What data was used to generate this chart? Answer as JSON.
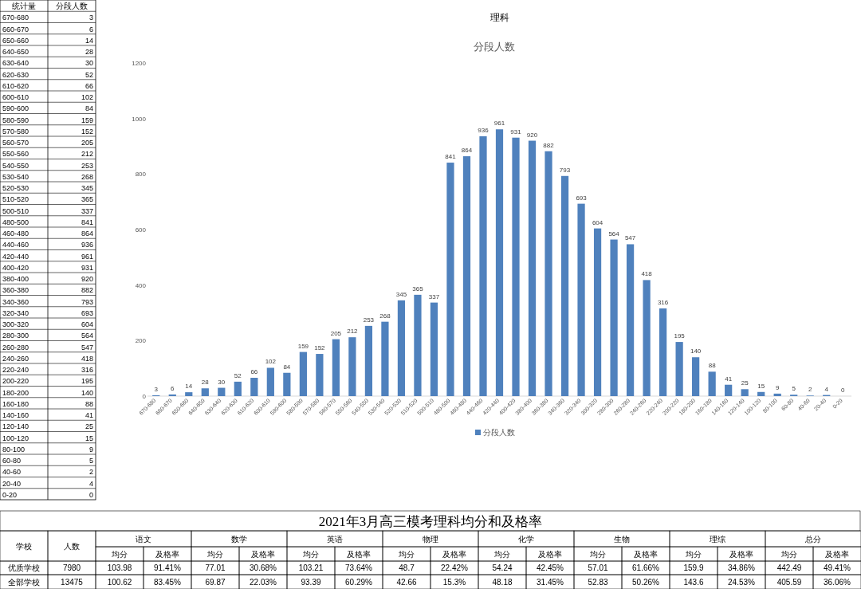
{
  "chart_data": [
    {
      "type": "other",
      "annotations": [
        "统计量",
        "分段人数",
        "670-680",
        "3",
        "660-670",
        "6",
        "650-660",
        "14",
        "640-650",
        "28",
        "630-640",
        "30",
        "620-630",
        "52",
        "610-620",
        "66",
        "600-610",
        "102",
        "590-600",
        "84",
        "580-590",
        "159",
        "570-580",
        "152",
        "560-570",
        "205",
        "550-560",
        "212",
        "540-550",
        "253",
        "530-540",
        "268",
        "520-530",
        "345",
        "510-520",
        "365",
        "500-510",
        "337",
        "480-500",
        "841",
        "460-480",
        "864",
        "440-460",
        "936",
        "420-440",
        "961",
        "400-420",
        "931",
        "380-400",
        "920",
        "360-380",
        "882",
        "340-360",
        "793",
        "320-340",
        "693",
        "300-320",
        "604",
        "280-300",
        "564",
        "260-280",
        "547",
        "240-260",
        "418",
        "220-240",
        "316",
        "200-220",
        "195",
        "180-200",
        "140",
        "160-180",
        "88",
        "140-160",
        "41",
        "120-140",
        "25",
        "100-120",
        "15",
        "80-100",
        "9",
        "60-80",
        "5",
        "40-60",
        "2",
        "20-40",
        "4",
        "0-20",
        "0"
      ]
    },
    {
      "type": "bar",
      "title": "理科",
      "subtitle": "分段人数",
      "categories": [
        "670-680",
        "660-670",
        "650-660",
        "640-650",
        "630-640",
        "620-630",
        "610-620",
        "600-610",
        "590-600",
        "580-590",
        "570-580",
        "560-570",
        "550-560",
        "540-550",
        "530-540",
        "520-530",
        "510-520",
        "500-510",
        "480-500",
        "460-480",
        "440-460",
        "420-440",
        "400-420",
        "380-400",
        "360-380",
        "340-360",
        "320-340",
        "300-320",
        "280-300",
        "260-280",
        "240-260",
        "220-240",
        "200-220",
        "180-200",
        "160-180",
        "140-160",
        "120-140",
        "100-120",
        "80-100",
        "60-80",
        "40-60",
        "20-40",
        "0-20"
      ],
      "series": [
        {
          "name": "分段人数",
          "color": "#4f81bd",
          "values": [
            3,
            6,
            14,
            28,
            30,
            52,
            66,
            102,
            84,
            159,
            152,
            205,
            212,
            253,
            268,
            345,
            365,
            337,
            841,
            864,
            936,
            961,
            931,
            920,
            882,
            793,
            693,
            604,
            564,
            547,
            418,
            316,
            195,
            140,
            88,
            41,
            25,
            15,
            9,
            5,
            2,
            4,
            0
          ]
        }
      ],
      "ylim": [
        0,
        1200
      ],
      "yticks": [
        0,
        200,
        400,
        600,
        800,
        1000,
        1200
      ],
      "data_labels": true,
      "legend": "bottom"
    },
    {
      "type": "other",
      "title": "2021年3月高三模考理科均分和及格率",
      "annotations": [
        "学校",
        "人数",
        "语文",
        "数学",
        "英语",
        "物理",
        "化学",
        "生物",
        "理综",
        "总分",
        "均分",
        "及格率",
        "均分",
        "及格率",
        "均分",
        "及格率",
        "均分",
        "及格率",
        "均分",
        "及格率",
        "均分",
        "及格率",
        "均分",
        "及格率",
        "均分",
        "及格率",
        "优质学校",
        "7980",
        "103.98",
        "91.41%",
        "77.01",
        "30.68%",
        "103.21",
        "73.64%",
        "48.7",
        "22.42%",
        "54.24",
        "42.45%",
        "57.01",
        "61.66%",
        "159.9",
        "34.86%",
        "442.49",
        "49.41%",
        "全部学校",
        "13475",
        "100.62",
        "83.45%",
        "69.87",
        "22.03%",
        "93.39",
        "60.29%",
        "42.66",
        "15.3%",
        "48.18",
        "31.45%",
        "52.83",
        "50.26%",
        "143.6",
        "24.53%",
        "405.59",
        "36.06%"
      ]
    }
  ]
}
